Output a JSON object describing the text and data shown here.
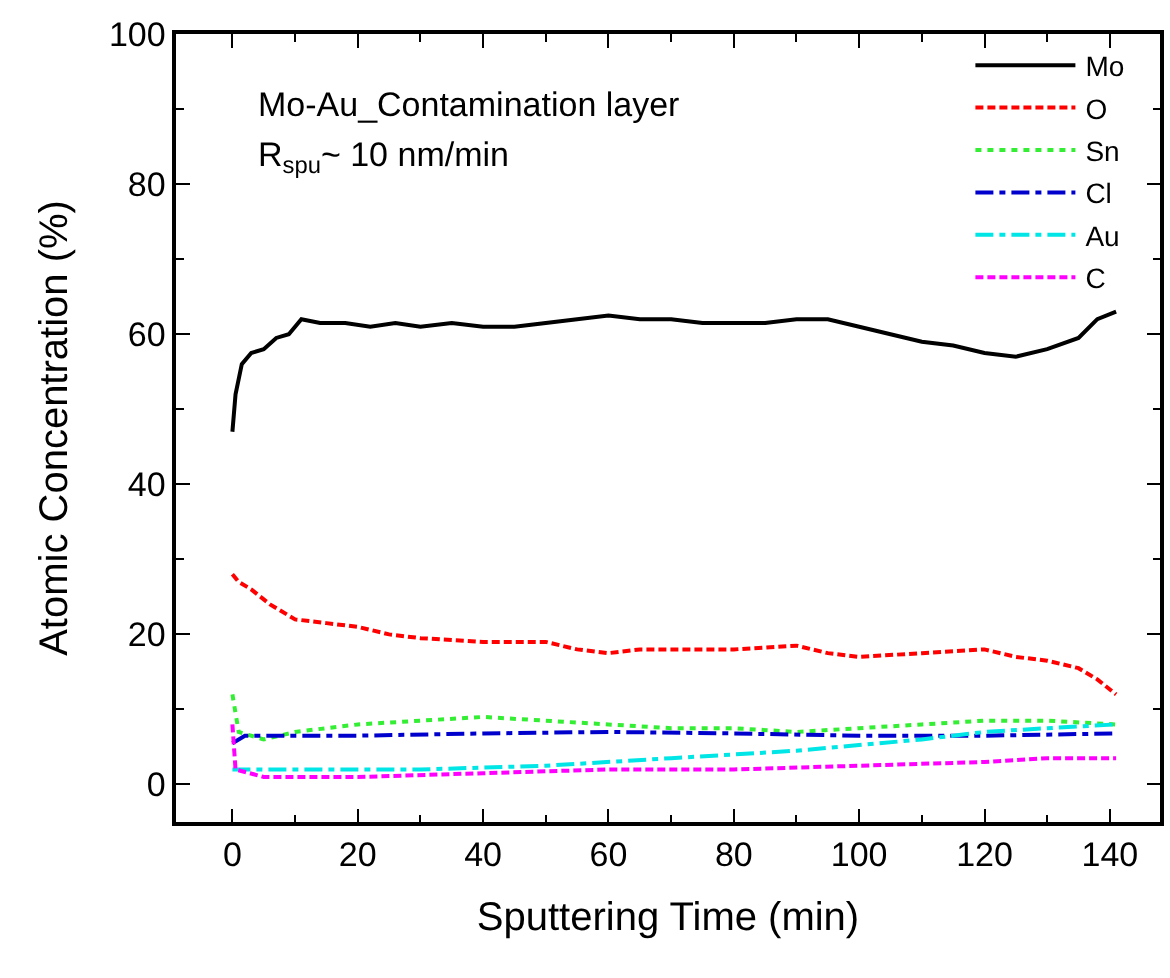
{
  "chart_data": {
    "type": "line",
    "xlabel": "Sputtering Time (min)",
    "ylabel": "Atomic Concentration (%)",
    "annotations": [
      "Mo-Au_Contamination layer",
      "R$_{spu}$~ 10 nm/min"
    ],
    "xlim": [
      -9,
      148
    ],
    "xticks": [
      0,
      20,
      40,
      60,
      80,
      100,
      120,
      140
    ],
    "ylim": [
      -5,
      100
    ],
    "yticks": [
      0,
      20,
      40,
      60,
      80,
      100
    ],
    "legend": "top right",
    "marker": "none",
    "series": [
      {
        "name": "Mo",
        "color": "#000000",
        "line_style": "solid",
        "x": [
          0,
          0.5,
          1.5,
          3,
          5,
          7,
          9,
          11,
          14,
          18,
          22,
          26,
          30,
          35,
          40,
          45,
          50,
          55,
          60,
          65,
          70,
          75,
          80,
          85,
          90,
          95,
          100,
          105,
          110,
          115,
          120,
          125,
          130,
          135,
          138,
          141
        ],
        "values": [
          47,
          52,
          56,
          57.5,
          58,
          59.5,
          60,
          62,
          61.5,
          61.5,
          61,
          61.5,
          61,
          61.5,
          61,
          61,
          61.5,
          62,
          62.5,
          62,
          62,
          61.5,
          61.5,
          61.5,
          62,
          62,
          61,
          60,
          59,
          58.5,
          57.5,
          57,
          58,
          59.5,
          62,
          63
        ]
      },
      {
        "name": "O",
        "color": "#ff0000",
        "line_style": "dashed",
        "x": [
          0,
          1,
          3,
          6,
          10,
          15,
          20,
          25,
          30,
          40,
          50,
          55,
          60,
          65,
          70,
          80,
          90,
          95,
          100,
          110,
          120,
          125,
          130,
          135,
          138,
          141
        ],
        "values": [
          28,
          27,
          26,
          24,
          22,
          21.5,
          21,
          20,
          19.5,
          19,
          19,
          18,
          17.5,
          18,
          18,
          18,
          18.5,
          17.5,
          17,
          17.5,
          18,
          17,
          16.5,
          15.5,
          14,
          12
        ]
      },
      {
        "name": "Sn",
        "color": "#33ee33",
        "line_style": "dotted",
        "x": [
          0,
          1,
          5,
          10,
          20,
          30,
          40,
          50,
          60,
          70,
          80,
          90,
          100,
          110,
          120,
          130,
          141
        ],
        "values": [
          12,
          7,
          6,
          7,
          8,
          8.5,
          9,
          8.5,
          8,
          7.5,
          7.5,
          7,
          7.5,
          8,
          8.5,
          8.5,
          8
        ]
      },
      {
        "name": "Cl",
        "color": "#0000cc",
        "line_style": "dashdot",
        "x": [
          0,
          2,
          20,
          40,
          60,
          80,
          100,
          120,
          141
        ],
        "values": [
          5.5,
          6.5,
          6.5,
          6.8,
          7,
          6.8,
          6.5,
          6.5,
          6.8
        ]
      },
      {
        "name": "Au",
        "color": "#00e5e5",
        "line_style": "dashdot",
        "x": [
          0,
          10,
          30,
          50,
          70,
          90,
          110,
          120,
          130,
          141
        ],
        "values": [
          2,
          2,
          2,
          2.5,
          3.5,
          4.5,
          6,
          7,
          7.5,
          8
        ]
      },
      {
        "name": "C",
        "color": "#ff00ff",
        "line_style": "dashed",
        "x": [
          0,
          0.5,
          5,
          20,
          40,
          60,
          80,
          100,
          120,
          130,
          141
        ],
        "values": [
          8,
          2,
          1,
          1,
          1.5,
          2,
          2,
          2.5,
          3,
          3.5,
          3.5
        ]
      }
    ]
  }
}
